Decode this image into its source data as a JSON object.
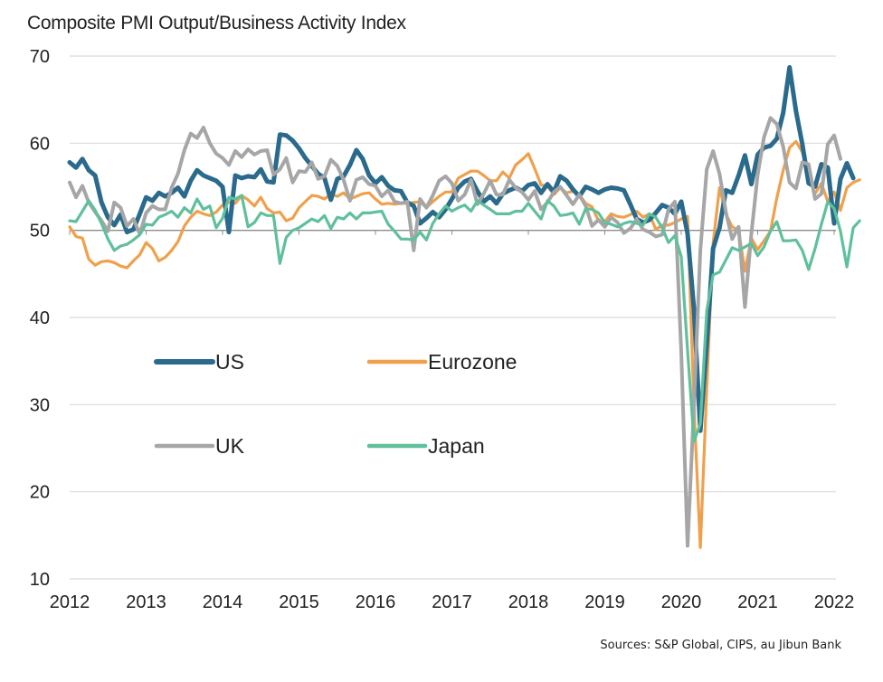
{
  "chart_data": {
    "type": "line",
    "title": "Composite PMI Output/Business Activity Index",
    "xlabel": "",
    "ylabel": "",
    "ylim": [
      10,
      70
    ],
    "yticks": [
      70,
      60,
      50,
      40,
      30,
      20,
      10
    ],
    "xlim": [
      2012.0,
      2022.3
    ],
    "xticks": [
      "2012",
      "2013",
      "2014",
      "2015",
      "2016",
      "2017",
      "2018",
      "2019",
      "2020",
      "2021",
      "2022"
    ],
    "reference_line": 50,
    "grid": true,
    "legend_position": "center-left (2x2 grid)",
    "x_start": "2012-01",
    "frequency": "monthly",
    "series": [
      {
        "name": "US",
        "color": "#2a6a8c",
        "values": [
          57.8,
          57.2,
          58.2,
          56.9,
          56.3,
          53.2,
          51.5,
          50.6,
          51.8,
          49.8,
          50.1,
          51.9,
          53.8,
          53.4,
          54.3,
          53.9,
          54.3,
          54.9,
          53.9,
          55.7,
          56.9,
          56.3,
          56.0,
          55.7,
          55.0,
          49.8,
          56.3,
          56.0,
          56.2,
          56.1,
          57.0,
          55.6,
          55.5,
          61.0,
          60.9,
          60.3,
          59.4,
          58.3,
          57.4,
          56.5,
          56.0,
          53.5,
          55.9,
          56.2,
          57.5,
          59.2,
          58.2,
          56.3,
          55.4,
          56.1,
          55.1,
          54.6,
          54.5,
          53.2,
          52.8,
          50.8,
          51.4,
          52.1,
          51.5,
          52.4,
          53.6,
          54.9,
          55.6,
          55.9,
          54.5,
          53.3,
          53.9,
          53.1,
          54.2,
          54.6,
          54.9,
          54.5,
          55.2,
          55.4,
          54.3,
          55.3,
          54.4,
          56.2,
          55.7,
          54.7,
          53.9,
          55.0,
          54.7,
          54.3,
          54.7,
          54.9,
          54.8,
          54.6,
          53.0,
          51.3,
          50.9,
          51.2,
          52.0,
          52.9,
          52.6,
          51.9,
          53.3,
          49.6,
          40.9,
          27.0,
          37.0,
          47.9,
          50.3,
          54.6,
          54.3,
          56.3,
          58.6,
          55.3,
          58.7,
          59.5,
          59.7,
          60.5,
          63.5,
          68.7,
          63.7,
          59.9,
          55.4,
          55.0,
          57.6,
          57.2,
          50.8,
          55.9,
          57.7,
          56.0
        ],
        "label_note": "values approximate, read from chart"
      },
      {
        "name": "Eurozone",
        "color": "#f0a04b",
        "values": [
          50.4,
          49.3,
          49.1,
          46.7,
          46.0,
          46.4,
          46.5,
          46.3,
          45.9,
          45.7,
          46.5,
          47.2,
          48.6,
          47.9,
          46.5,
          46.9,
          47.7,
          48.7,
          50.5,
          51.5,
          52.2,
          51.9,
          51.7,
          52.1,
          52.9,
          53.2,
          53.1,
          54.0,
          53.5,
          52.8,
          53.8,
          52.5,
          52.0,
          52.1,
          51.1,
          51.4,
          52.6,
          53.3,
          54.0,
          53.9,
          53.6,
          54.2,
          53.9,
          54.3,
          53.6,
          53.9,
          54.2,
          54.3,
          53.6,
          53.0,
          53.1,
          53.0,
          53.1,
          53.1,
          53.2,
          53.3,
          52.6,
          53.3,
          53.9,
          54.4,
          54.4,
          56.0,
          56.4,
          56.8,
          56.8,
          56.3,
          55.7,
          55.7,
          56.7,
          56.0,
          57.5,
          58.1,
          58.8,
          57.1,
          55.2,
          55.1,
          54.1,
          54.9,
          54.3,
          54.5,
          54.1,
          53.1,
          52.7,
          51.1,
          51.0,
          51.9,
          51.6,
          51.5,
          51.8,
          52.2,
          51.5,
          51.9,
          50.1,
          50.6,
          50.6,
          50.9,
          51.3,
          51.6,
          29.7,
          13.6,
          31.9,
          48.5,
          54.9,
          51.9,
          50.4,
          50.0,
          45.3,
          49.1,
          47.8,
          48.8,
          49.9,
          53.7,
          56.9,
          59.5,
          60.2,
          59.0,
          56.2,
          54.2,
          55.4,
          53.3,
          54.4,
          52.3,
          54.9,
          55.5,
          55.8
        ],
        "label_note": "values approximate, read from chart"
      },
      {
        "name": "UK",
        "color": "#a6a6a6",
        "values": [
          55.5,
          53.8,
          55.1,
          53.2,
          52.1,
          51.1,
          49.9,
          53.2,
          52.6,
          50.5,
          51.3,
          49.6,
          52.0,
          52.8,
          52.4,
          52.4,
          54.9,
          56.5,
          59.2,
          61.1,
          60.6,
          61.8,
          60.0,
          58.8,
          58.3,
          57.5,
          59.1,
          58.4,
          59.3,
          58.7,
          59.1,
          59.2,
          56.4,
          57.0,
          58.3,
          55.5,
          56.8,
          56.7,
          57.8,
          55.9,
          56.2,
          58.1,
          57.4,
          55.8,
          53.4,
          55.8,
          56.1,
          55.3,
          55.1,
          53.9,
          54.6,
          53.3,
          53.1,
          53.3,
          47.7,
          53.6,
          52.6,
          54.0,
          55.7,
          56.2,
          55.4,
          53.4,
          54.1,
          55.8,
          53.0,
          54.2,
          55.7,
          54.1,
          54.1,
          55.8,
          54.9,
          54.4,
          53.5,
          54.5,
          52.4,
          53.2,
          54.4,
          55.0,
          54.0,
          53.0,
          54.1,
          52.8,
          50.5,
          51.2,
          50.4,
          51.5,
          50.9,
          49.7,
          50.2,
          51.3,
          50.1,
          49.8,
          49.3,
          49.5,
          52.4,
          53.3,
          36.0,
          13.8,
          30.0,
          47.7,
          57.0,
          59.1,
          56.5,
          52.1,
          49.0,
          50.4,
          41.2,
          49.6,
          56.4,
          60.7,
          62.9,
          62.2,
          59.6,
          55.5,
          54.8,
          57.8,
          57.6,
          53.6,
          54.2,
          59.9,
          60.9,
          58.2
        ],
        "label_note": "values approximate, read from chart"
      },
      {
        "name": "Japan",
        "color": "#5fc09b",
        "values": [
          51.1,
          51.0,
          52.2,
          53.4,
          52.3,
          50.8,
          49.0,
          47.7,
          48.2,
          48.4,
          48.9,
          49.5,
          50.7,
          50.6,
          51.5,
          51.8,
          52.2,
          51.5,
          52.6,
          52.0,
          53.6,
          52.4,
          52.8,
          50.3,
          51.4,
          53.8,
          53.6,
          54.0,
          50.4,
          50.9,
          52.0,
          51.7,
          51.7,
          46.2,
          49.2,
          50.0,
          50.3,
          50.8,
          51.3,
          51.0,
          51.7,
          50.2,
          51.5,
          51.3,
          52.0,
          51.3,
          52.0,
          52.0,
          52.1,
          52.2,
          50.7,
          49.9,
          49.0,
          49.0,
          48.9,
          49.8,
          48.9,
          50.8,
          51.9,
          52.8,
          52.2,
          52.6,
          52.9,
          52.2,
          53.4,
          52.9,
          52.4,
          51.9,
          51.9,
          51.9,
          52.2,
          52.2,
          53.1,
          52.2,
          51.3,
          53.4,
          52.8,
          51.7,
          51.8,
          52.0,
          50.7,
          52.5,
          52.4,
          52.0,
          50.9,
          50.7,
          50.4,
          50.8,
          51.0,
          50.8,
          50.6,
          51.9,
          51.5,
          50.3,
          48.6,
          49.4,
          47.0,
          36.2,
          25.8,
          27.8,
          40.8,
          44.9,
          45.2,
          46.6,
          48.0,
          47.7,
          48.1,
          48.5,
          47.1,
          48.1,
          49.9,
          51.0,
          48.8,
          48.8,
          48.9,
          47.7,
          45.5,
          47.9,
          50.7,
          53.3,
          52.5,
          49.9,
          45.8,
          50.3,
          51.1
        ],
        "label_note": "values approximate, read from chart"
      }
    ]
  },
  "source_note": "Sources: S&P Global, CIPS, au Jibun Bank"
}
